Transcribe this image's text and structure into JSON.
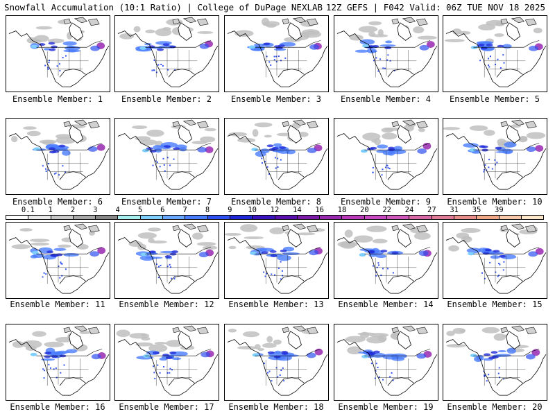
{
  "header": {
    "left": "Snowfall Accumulation (10:1 Ratio) | College of DuPage NEXLAB",
    "right": "12Z GEFS | F042 Valid: 06Z TUE NOV 18 2025"
  },
  "caption_prefix": "Ensemble Member:",
  "members": [
    {
      "label": "Ensemble Member: 1"
    },
    {
      "label": "Ensemble Member: 2"
    },
    {
      "label": "Ensemble Member: 3"
    },
    {
      "label": "Ensemble Member: 4"
    },
    {
      "label": "Ensemble Member: 5"
    },
    {
      "label": "Ensemble Member: 6"
    },
    {
      "label": "Ensemble Member: 7"
    },
    {
      "label": "Ensemble Member: 8"
    },
    {
      "label": "Ensemble Member: 9"
    },
    {
      "label": "Ensemble Member: 10"
    },
    {
      "label": "Ensemble Member: 11"
    },
    {
      "label": "Ensemble Member: 12"
    },
    {
      "label": "Ensemble Member: 13"
    },
    {
      "label": "Ensemble Member: 14"
    },
    {
      "label": "Ensemble Member: 15"
    },
    {
      "label": "Ensemble Member: 16"
    },
    {
      "label": "Ensemble Member: 17"
    },
    {
      "label": "Ensemble Member: 18"
    },
    {
      "label": "Ensemble Member: 19"
    },
    {
      "label": "Ensemble Member: 20"
    }
  ],
  "colorscale": {
    "labels": [
      "0.1",
      "1",
      "2",
      "3",
      "4",
      "5",
      "6",
      "7",
      "8",
      "9",
      "10",
      "12",
      "14",
      "16",
      "18",
      "20",
      "22",
      "24",
      "27",
      "31",
      "35",
      "39"
    ],
    "colors": [
      "#ffffff",
      "#e8e8e8",
      "#c8c8c8",
      "#a8a8a8",
      "#888888",
      "#a8f0f0",
      "#7fd0ff",
      "#6aa8ff",
      "#4a7cff",
      "#2f50f0",
      "#1e2ad8",
      "#3a14c0",
      "#5a10b0",
      "#7a1aa8",
      "#9828b0",
      "#b838b8",
      "#c848c0",
      "#d058b8",
      "#d86aa8",
      "#e07c98",
      "#e88e88",
      "#f0a888",
      "#f8c8a8",
      "#ffe8c8"
    ]
  }
}
